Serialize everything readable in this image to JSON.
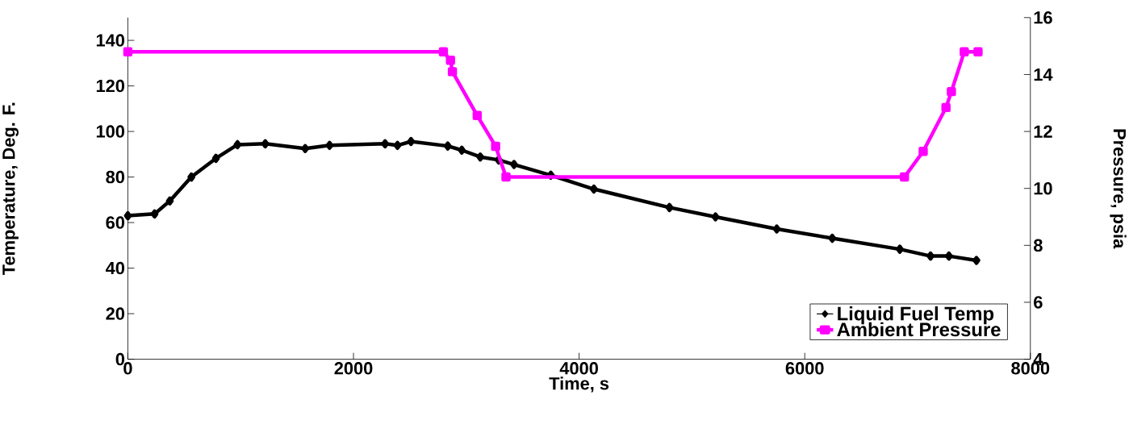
{
  "chart_data": {
    "type": "line",
    "xlabel": "Time, s",
    "ylabel": "Temperature, Deg. F.",
    "y2label": "Pressure, psia",
    "xlim": [
      0,
      8000
    ],
    "xticks": [
      0,
      2000,
      4000,
      6000,
      8000
    ],
    "ylim": [
      0,
      150
    ],
    "yticks": [
      0,
      20,
      40,
      60,
      80,
      100,
      120,
      140
    ],
    "y2lim": [
      4,
      16
    ],
    "y2ticks": [
      4,
      6,
      8,
      10,
      12,
      14,
      16
    ],
    "grid": false,
    "legend": "bottom right",
    "line_style": "solid",
    "series": [
      {
        "name": "Liquid Fuel Temp",
        "color": "#000000",
        "marker": "diamond",
        "x": [
          0,
          237,
          372,
          563,
          781,
          972,
          1218,
          1572,
          1788,
          2280,
          2390,
          2510,
          2836,
          2960,
          3124,
          3287,
          3423,
          3749,
          4131,
          4801,
          5209,
          5752,
          6244,
          6843,
          7115,
          7278,
          7522
        ],
        "values": [
          63,
          63.8,
          69.5,
          80,
          88.2,
          94.2,
          94.6,
          92.5,
          93.9,
          94.6,
          93.9,
          95.6,
          93.6,
          91.8,
          88.8,
          87.5,
          85.5,
          80.8,
          74.7,
          66.6,
          62.5,
          57.2,
          53.1,
          48.3,
          45.3,
          45.3,
          43.4
        ]
      },
      {
        "name": "Ambient Pressure",
        "color": "#ff00ff",
        "marker": "square",
        "axis": "y2",
        "x": [
          0,
          2797,
          2860,
          2877,
          3097,
          3260,
          3352,
          6884,
          7050,
          7252,
          7300,
          7414,
          7536
        ],
        "values": [
          14.8,
          14.8,
          14.5,
          14.1,
          12.56,
          11.48,
          10.4,
          10.4,
          11.3,
          12.84,
          13.4,
          14.8,
          14.8
        ]
      }
    ]
  }
}
